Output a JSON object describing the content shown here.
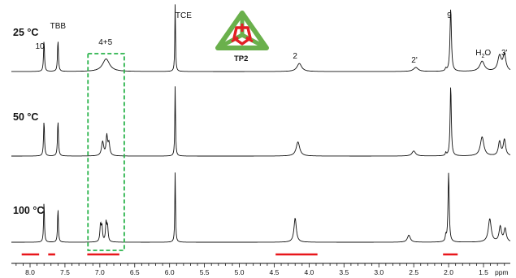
{
  "chart_data": {
    "type": "line",
    "title": "",
    "xlabel": "ppm",
    "ylabel": "",
    "xlim": [
      8.2,
      1.0
    ],
    "x_reversed": true,
    "x_ticks": [
      "8.0",
      "7.5",
      "7.0",
      "6.5",
      "6.0",
      "5.5",
      "5.0",
      "4.5",
      "4.0",
      "3.5",
      "3.0",
      "2.5",
      "2.0",
      "1.5"
    ],
    "x_tick_values": [
      8.0,
      7.5,
      7.0,
      6.5,
      6.0,
      5.5,
      5.0,
      4.5,
      4.0,
      3.5,
      3.0,
      2.5,
      2.0,
      1.5
    ],
    "grid": false,
    "legend": "none",
    "series": [
      {
        "name": "25 °C",
        "peaks": [
          {
            "x": 7.8,
            "h": 0.62,
            "w": 0.008
          },
          {
            "x": 7.6,
            "h": 0.62,
            "w": 0.008
          },
          {
            "x": 6.91,
            "h": 0.25,
            "w": 0.06
          },
          {
            "x": 5.92,
            "h": 1.35,
            "w": 0.006
          },
          {
            "x": 4.14,
            "h": 0.16,
            "w": 0.04
          },
          {
            "x": 2.47,
            "h": 0.08,
            "w": 0.04
          },
          {
            "x": 1.97,
            "h": 1.25,
            "w": 0.012
          },
          {
            "x": 2.04,
            "h": 0.05,
            "w": 0.01
          },
          {
            "x": 1.52,
            "h": 0.2,
            "w": 0.04
          },
          {
            "x": 1.27,
            "h": 0.3,
            "w": 0.03
          },
          {
            "x": 1.2,
            "h": 0.32,
            "w": 0.025
          }
        ]
      },
      {
        "name": "50 °C",
        "peaks": [
          {
            "x": 7.8,
            "h": 0.7,
            "w": 0.008
          },
          {
            "x": 7.6,
            "h": 0.7,
            "w": 0.008
          },
          {
            "x": 6.96,
            "h": 0.28,
            "w": 0.018
          },
          {
            "x": 6.9,
            "h": 0.38,
            "w": 0.012
          },
          {
            "x": 6.87,
            "h": 0.25,
            "w": 0.015
          },
          {
            "x": 5.92,
            "h": 1.4,
            "w": 0.006
          },
          {
            "x": 4.16,
            "h": 0.28,
            "w": 0.03
          },
          {
            "x": 2.5,
            "h": 0.1,
            "w": 0.03
          },
          {
            "x": 1.97,
            "h": 1.4,
            "w": 0.01
          },
          {
            "x": 2.04,
            "h": 0.06,
            "w": 0.008
          },
          {
            "x": 1.52,
            "h": 0.38,
            "w": 0.03
          },
          {
            "x": 1.27,
            "h": 0.28,
            "w": 0.02
          },
          {
            "x": 1.2,
            "h": 0.32,
            "w": 0.02
          }
        ]
      },
      {
        "name": "100 °C",
        "peaks": [
          {
            "x": 7.8,
            "h": 0.82,
            "w": 0.007
          },
          {
            "x": 7.6,
            "h": 0.68,
            "w": 0.007
          },
          {
            "x": 6.99,
            "h": 0.34,
            "w": 0.01
          },
          {
            "x": 6.97,
            "h": 0.3,
            "w": 0.01
          },
          {
            "x": 6.91,
            "h": 0.38,
            "w": 0.01
          },
          {
            "x": 6.89,
            "h": 0.3,
            "w": 0.01
          },
          {
            "x": 5.92,
            "h": 1.4,
            "w": 0.006
          },
          {
            "x": 4.2,
            "h": 0.48,
            "w": 0.02
          },
          {
            "x": 2.57,
            "h": 0.14,
            "w": 0.025
          },
          {
            "x": 2.0,
            "h": 1.38,
            "w": 0.01
          },
          {
            "x": 2.04,
            "h": 0.12,
            "w": 0.008
          },
          {
            "x": 1.41,
            "h": 0.46,
            "w": 0.025
          },
          {
            "x": 1.26,
            "h": 0.3,
            "w": 0.02
          },
          {
            "x": 1.19,
            "h": 0.26,
            "w": 0.02
          }
        ]
      }
    ],
    "annotations": {
      "peak_labels": [
        {
          "text": "10",
          "x": 7.86,
          "series": 0
        },
        {
          "text": "TBB",
          "x": 7.6,
          "series": 0
        },
        {
          "text": "4+5",
          "x": 6.92,
          "series": 0
        },
        {
          "text": "TCE",
          "x": 5.8,
          "series": 0
        },
        {
          "text": "2",
          "x": 4.2,
          "series": 0
        },
        {
          "text": "2'",
          "x": 2.49,
          "series": 0
        },
        {
          "text": "9",
          "x": 1.99,
          "series": 0
        },
        {
          "text": "3'",
          "x": 1.2,
          "series": 0
        }
      ],
      "water_label": {
        "text": "H",
        "sub": "2",
        "tail": "O",
        "x": 1.52
      },
      "structure_label": "TP2",
      "highlight_box_ppm": [
        7.17,
        6.65
      ],
      "red_bars_ppm": [
        [
          8.12,
          7.87
        ],
        [
          7.74,
          7.64
        ],
        [
          7.18,
          6.72
        ],
        [
          4.48,
          3.88
        ],
        [
          2.08,
          1.87
        ]
      ]
    },
    "colors": {
      "trace": "#111111",
      "box": "#29b34a",
      "bar": "#e8161b",
      "logo_green": "#6ab04c",
      "logo_red": "#e31e24"
    }
  }
}
